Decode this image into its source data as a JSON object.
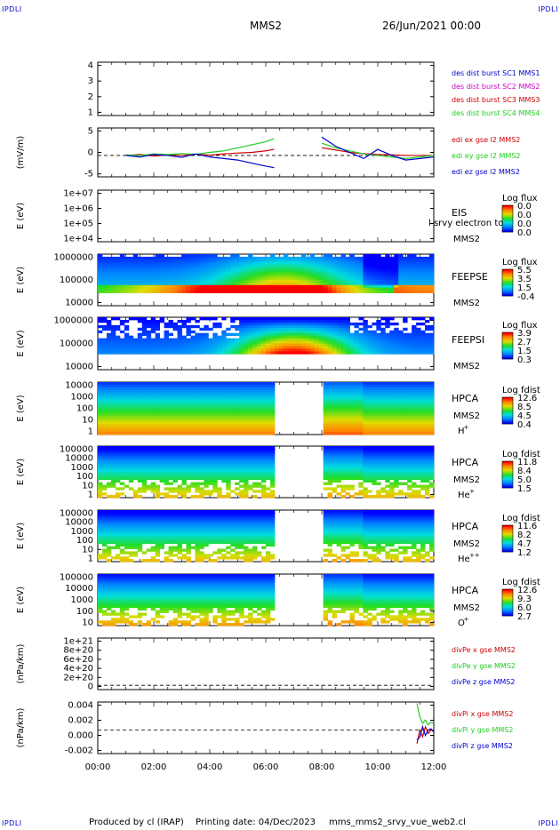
{
  "header": {
    "corner_tl": "IPDLI",
    "corner_tr": "IPDLI",
    "corner_bl": "IPDLI",
    "corner_br": "IPDLI",
    "mission": "MMS2",
    "date": "26/Jun/2021 00:00"
  },
  "footer": {
    "produced": "Produced by cl (IRAP)",
    "printing": "Printing date: 04/Dec/2023",
    "file": "mms_mms2_srvy_vue_web2.cl"
  },
  "colors": {
    "blue": "#0000cc",
    "magenta": "#cc00cc",
    "red": "#cc0000",
    "green": "#22cc22",
    "spectrogram_palette": [
      "#0000ff",
      "#0088ff",
      "#00dddd",
      "#22dd22",
      "#dddd00",
      "#ff8800",
      "#ff0000"
    ]
  },
  "chart_data": [
    {
      "type": "line",
      "panel": "sc-config",
      "ylabel": "",
      "yticks": [
        "4",
        "3",
        "2",
        "1"
      ],
      "ylim": [
        0.5,
        4.5
      ],
      "series": [
        {
          "name": "des dist burst SC1 MMS1",
          "color": "#0000cc",
          "values": []
        },
        {
          "name": "des dist burst SC2 MMS2",
          "color": "#cc00cc",
          "values": []
        },
        {
          "name": "des dist burst SC3 MMS3",
          "color": "#cc0000",
          "values": []
        },
        {
          "name": "des dist burst SC4 MMS4",
          "color": "#22cc22",
          "values": []
        }
      ]
    },
    {
      "type": "line",
      "panel": "edi-efield",
      "ylabel": "(mV/m)",
      "yticks": [
        "5",
        "0",
        "-5"
      ],
      "ylim": [
        -7,
        9
      ],
      "x": [
        1.0,
        1.5,
        2.0,
        2.5,
        3.0,
        3.5,
        4.0,
        4.5,
        5.0,
        5.5,
        6.0,
        6.3,
        8.0,
        8.5,
        9.0,
        9.5,
        10.0,
        10.5,
        11.0,
        11.5,
        12.0
      ],
      "series": [
        {
          "name": "edi ex gse l2 MMS2",
          "color": "#cc0000",
          "values": [
            0.0,
            0.3,
            -0.2,
            0.2,
            0.0,
            0.4,
            0.1,
            0.5,
            0.8,
            1.0,
            1.5,
            2.0,
            2.5,
            1.8,
            1.0,
            0.6,
            0.3,
            0.2,
            0.0,
            0.0,
            0.0
          ]
        },
        {
          "name": "edi ey gse l2 MMS2",
          "color": "#22cc22",
          "values": [
            0.2,
            0.0,
            0.5,
            0.3,
            0.6,
            0.4,
            1.0,
            1.5,
            2.5,
            3.5,
            4.5,
            5.5,
            4.0,
            2.5,
            1.5,
            0.5,
            0.0,
            -0.5,
            -1.0,
            -0.5,
            0.0
          ]
        },
        {
          "name": "edi ez gse l2 MMS2",
          "color": "#0000cc",
          "values": [
            0.0,
            -0.5,
            0.3,
            0.0,
            -0.6,
            0.5,
            -0.5,
            -1.0,
            -1.5,
            -2.5,
            -3.5,
            -4.0,
            6.0,
            3.0,
            1.0,
            -1.0,
            2.0,
            0.0,
            -1.5,
            -1.0,
            -0.5
          ]
        }
      ]
    },
    {
      "type": "heatmap",
      "panel": "eis",
      "ylabel": "E (eV)",
      "yticks": [
        "1e+07",
        "1e+06",
        "1e+05",
        "1e+04"
      ],
      "instrument": "EIS",
      "species": "MMS2",
      "note": "l srvy electron to",
      "colorbar_title": "Log flux",
      "colorbar_ticks": [
        "0.0",
        "0.0",
        "0.0",
        "0.0"
      ],
      "grid": false
    },
    {
      "type": "heatmap",
      "panel": "feepse",
      "ylabel": "E (eV)",
      "yticks": [
        "1000000",
        "100000",
        "10000"
      ],
      "instrument": "FEEPSE",
      "species": "MMS2",
      "colorbar_title": "Log flux",
      "colorbar_ticks": [
        "5.5",
        "3.5",
        "1.5",
        "-0.4"
      ]
    },
    {
      "type": "heatmap",
      "panel": "feepsi",
      "ylabel": "E (eV)",
      "yticks": [
        "1000000",
        "100000",
        "10000"
      ],
      "instrument": "FEEPSI",
      "species": "MMS2",
      "colorbar_title": "Log flux",
      "colorbar_ticks": [
        "3.9",
        "2.7",
        "1.5",
        "0.3"
      ]
    },
    {
      "type": "heatmap",
      "panel": "hpca-h",
      "ylabel": "E (eV)",
      "yticks": [
        "10000",
        "1000",
        "100",
        "10",
        "1"
      ],
      "instrument": "HPCA",
      "species": "MMS2",
      "ion": "H",
      "ion_sup": "+",
      "colorbar_title": "Log fdist",
      "colorbar_ticks": [
        "12.6",
        "8.5",
        "4.5",
        "0.4"
      ]
    },
    {
      "type": "heatmap",
      "panel": "hpca-he",
      "ylabel": "E (eV)",
      "yticks": [
        "100000",
        "10000",
        "1000",
        "100",
        "10",
        "1"
      ],
      "instrument": "HPCA",
      "species": "MMS2",
      "ion": "He",
      "ion_sup": "+",
      "colorbar_title": "Log fdist",
      "colorbar_ticks": [
        "11.8",
        "8.4",
        "5.0",
        "1.5"
      ]
    },
    {
      "type": "heatmap",
      "panel": "hpca-hepp",
      "ylabel": "E (eV)",
      "yticks": [
        "100000",
        "10000",
        "1000",
        "100",
        "10",
        "1"
      ],
      "instrument": "HPCA",
      "species": "MMS2",
      "ion": "He",
      "ion_sup": "++",
      "colorbar_title": "Log fdist",
      "colorbar_ticks": [
        "11.6",
        "8.2",
        "4.7",
        "1.2"
      ]
    },
    {
      "type": "heatmap",
      "panel": "hpca-o",
      "ylabel": "E (eV)",
      "yticks": [
        "100000",
        "10000",
        "1000",
        "100",
        "10"
      ],
      "instrument": "HPCA",
      "species": "MMS2",
      "ion": "O",
      "ion_sup": "+",
      "colorbar_title": "Log fdist",
      "colorbar_ticks": [
        "12.6",
        "9.3",
        "6.0",
        "2.7"
      ]
    },
    {
      "type": "line",
      "panel": "divpe",
      "ylabel": "(nPa/km)",
      "yticks": [
        "1e+21",
        "8e+20",
        "6e+20",
        "4e+20",
        "2e+20",
        "0"
      ],
      "ylim": [
        -1e+20,
        1.1e+21
      ],
      "series": [
        {
          "name": "divPe x gse MMS2",
          "color": "#cc0000",
          "values": []
        },
        {
          "name": "divPe y gse MMS2",
          "color": "#22cc22",
          "values": []
        },
        {
          "name": "divPe z gse MMS2",
          "color": "#0000cc",
          "values": []
        }
      ]
    },
    {
      "type": "line",
      "panel": "divpi",
      "ylabel": "(nPa/km)",
      "yticks": [
        "0.004",
        "0.002",
        "0.000",
        "-0.002"
      ],
      "ylim": [
        -0.0035,
        0.0042
      ],
      "x": [
        11.4,
        11.5,
        11.6,
        11.7,
        11.8,
        11.9,
        12.0
      ],
      "series": [
        {
          "name": "divPi x gse MMS2",
          "color": "#cc0000",
          "values": [
            -0.002,
            0.0,
            -0.001,
            0.0005,
            -0.0005,
            0.0,
            0.0
          ]
        },
        {
          "name": "divPi y gse MMS2",
          "color": "#22cc22",
          "values": [
            0.004,
            0.002,
            0.001,
            0.0015,
            0.0008,
            0.0012,
            0.001
          ]
        },
        {
          "name": "divPi z gse MMS2",
          "color": "#0000cc",
          "values": [
            -0.0015,
            -0.001,
            0.0005,
            -0.0008,
            0.0,
            0.0002,
            -0.0003
          ]
        }
      ]
    }
  ],
  "xaxis": {
    "ticks": [
      "00:00",
      "02:00",
      "04:00",
      "06:00",
      "08:00",
      "10:00",
      "12:00"
    ]
  }
}
